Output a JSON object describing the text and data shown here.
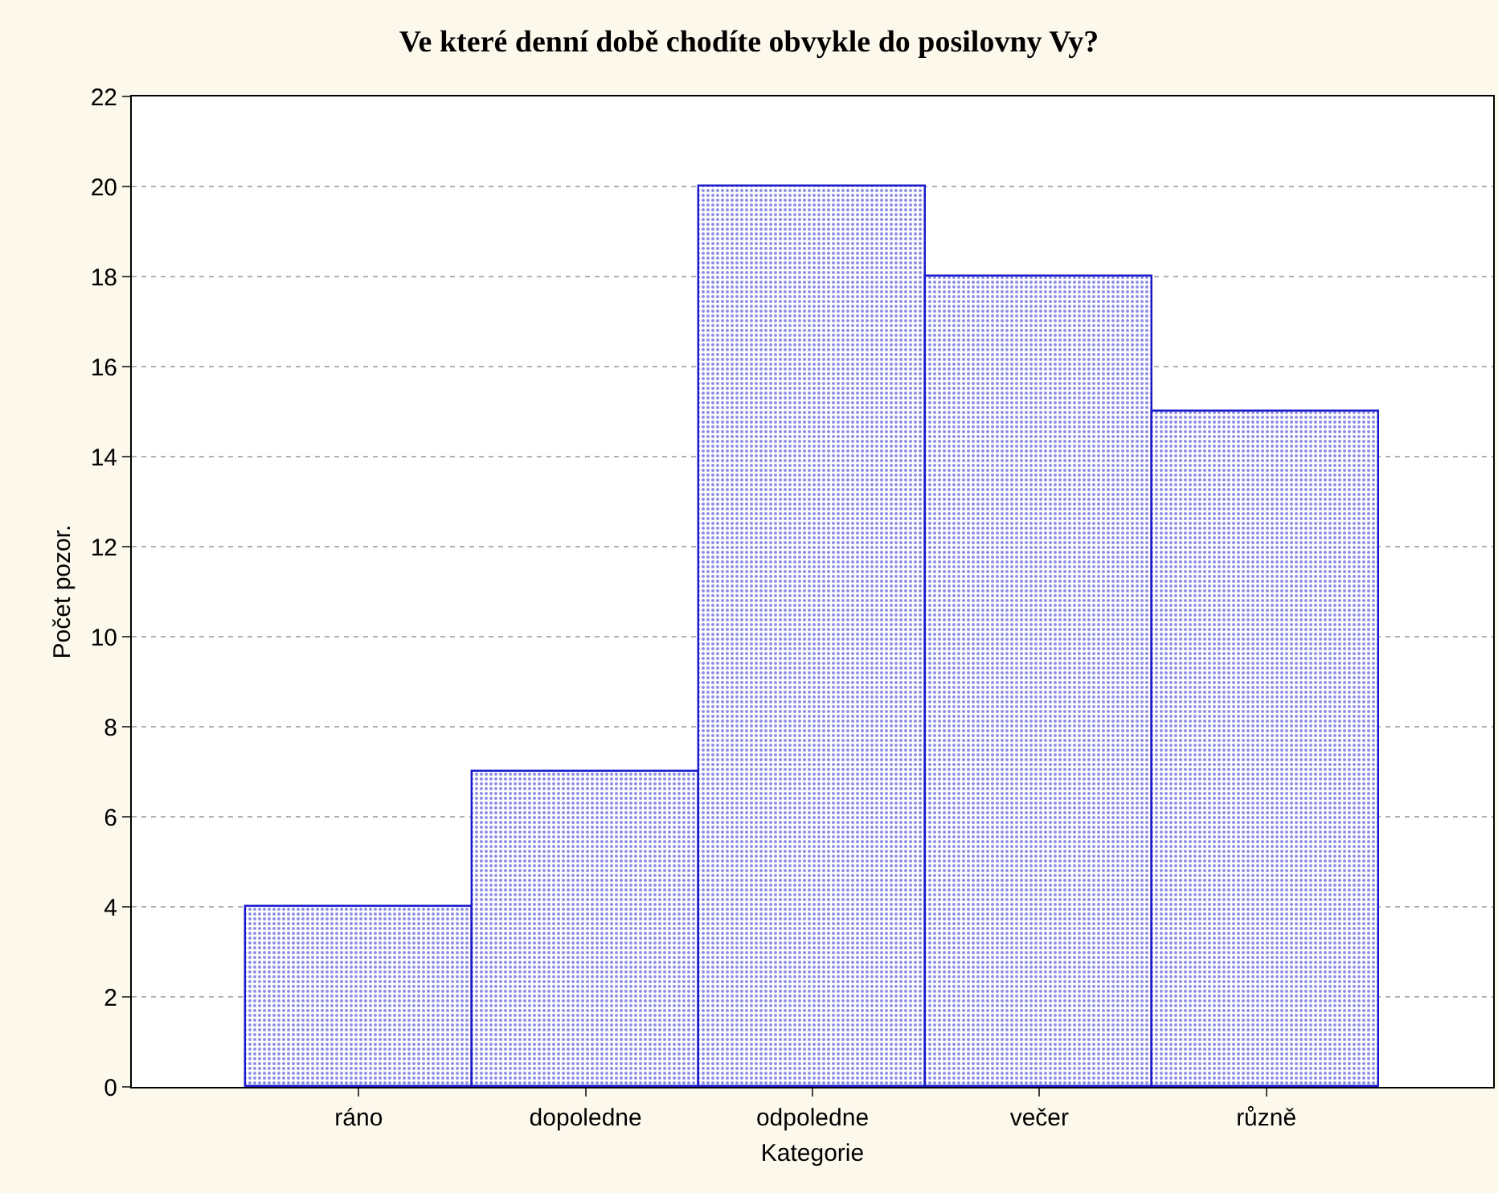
{
  "chart_data": {
    "type": "bar",
    "title": "Ve které denní době chodíte obvykle do posilovny Vy?",
    "xlabel": "Kategorie",
    "ylabel": "Počet pozor.",
    "categories": [
      "ráno",
      "dopoledne",
      "odpoledne",
      "večer",
      "různě"
    ],
    "values": [
      4,
      7,
      20,
      18,
      15
    ],
    "color": "#1a1acc",
    "ylim": [
      0,
      22
    ],
    "yticks": [
      0,
      2,
      4,
      6,
      8,
      10,
      12,
      14,
      16,
      18,
      20,
      22
    ],
    "grid": "y"
  }
}
